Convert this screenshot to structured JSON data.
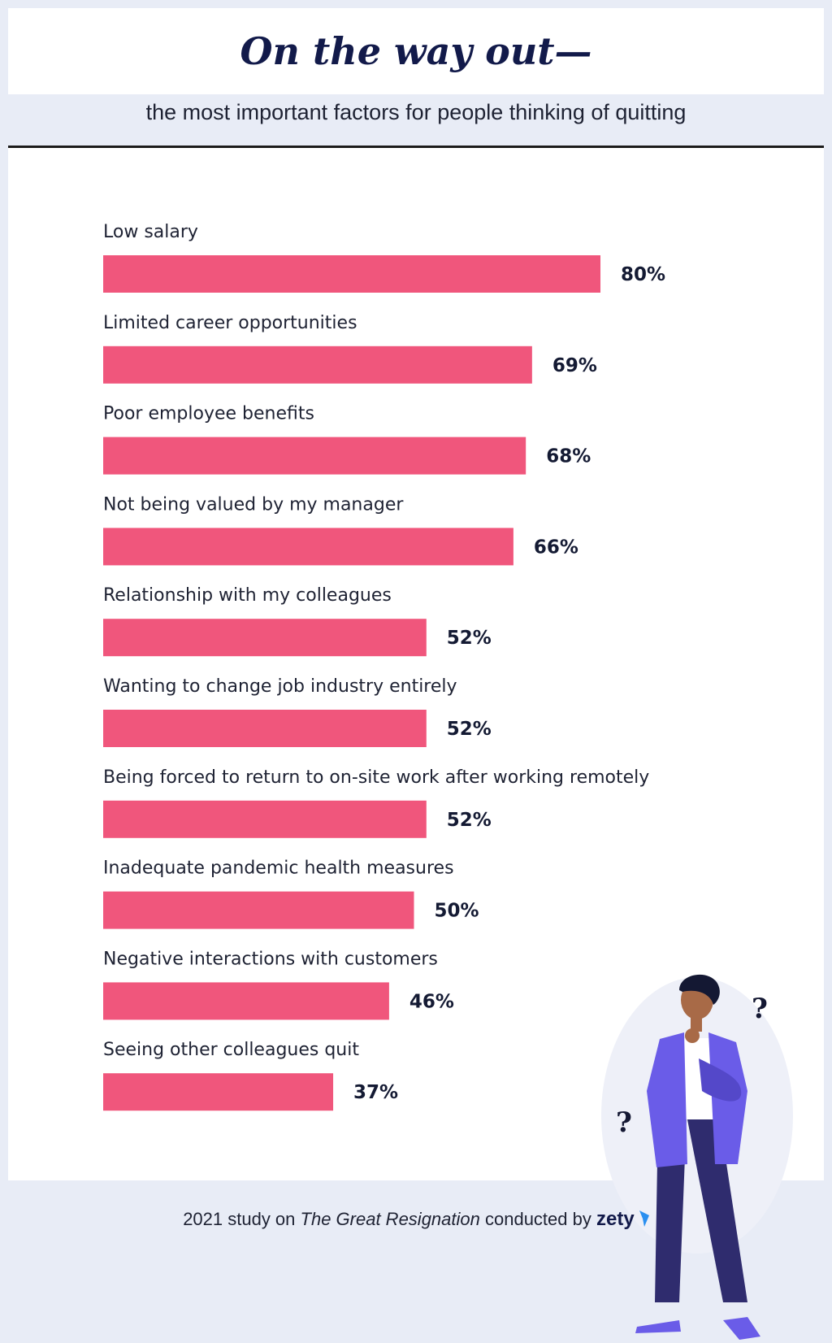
{
  "header": {
    "title": "On the way out—",
    "subtitle": "the most important factors for people thinking of quitting"
  },
  "footer": {
    "prefix": "2021 study on ",
    "study_name": "The Great Resignation",
    "middle": " conducted by ",
    "brand": "zety"
  },
  "colors": {
    "bar": "#f0567c",
    "background": "#e8ecf6",
    "title": "#121a4a",
    "jacket": "#6a5ce8",
    "pants": "#2f2c6e"
  },
  "icons": [
    "thinking-person-illustration",
    "question-mark-icon",
    "zety-logo-icon"
  ],
  "chart_data": {
    "type": "bar",
    "orientation": "horizontal",
    "title": "On the way out—",
    "subtitle": "the most important factors for people thinking of quitting",
    "categories": [
      "Low salary",
      "Limited career opportunities",
      "Poor employee benefits",
      "Not being valued by my manager",
      "Relationship with my colleagues",
      "Wanting to change job industry entirely",
      "Being forced to return to on-site work after working remotely",
      "Inadequate pandemic health measures",
      "Negative interactions with customers",
      "Seeing other colleagues quit"
    ],
    "values": [
      80,
      69,
      68,
      66,
      52,
      52,
      52,
      50,
      46,
      37
    ],
    "value_labels": [
      "80%",
      "69%",
      "68%",
      "66%",
      "52%",
      "52%",
      "52%",
      "50%",
      "46%",
      "37%"
    ],
    "unit": "%",
    "xlim": [
      0,
      100
    ],
    "grid": false,
    "legend": "none"
  }
}
